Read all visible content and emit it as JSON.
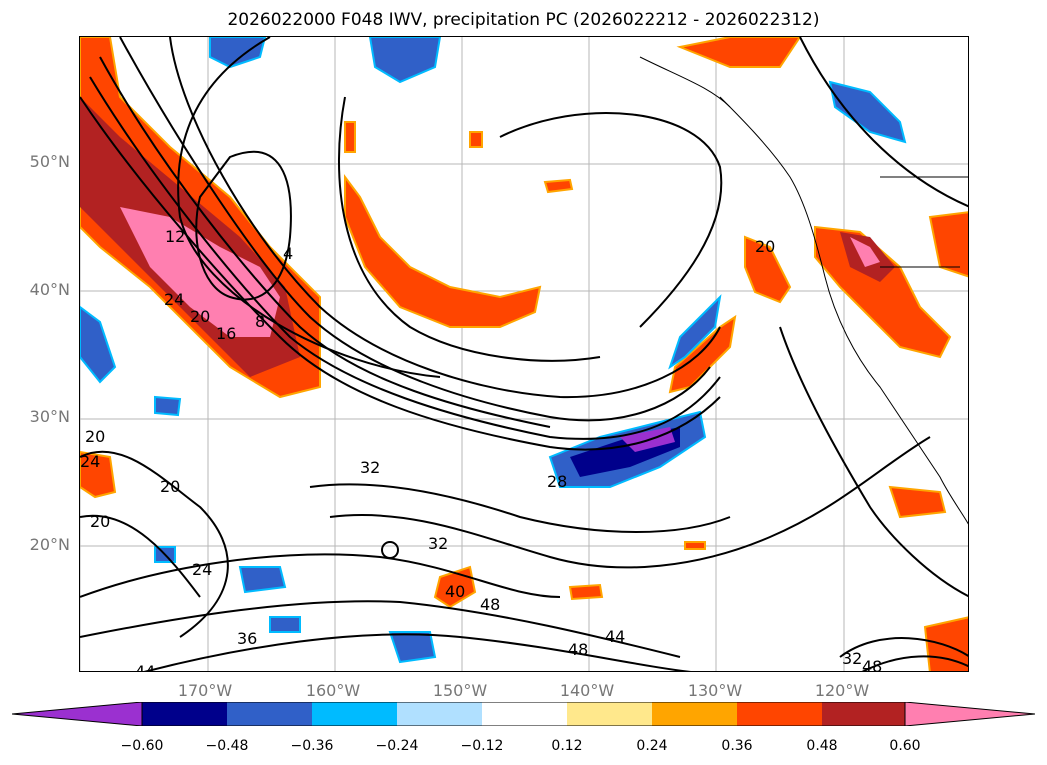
{
  "title": "2026022000 F048 IWV, precipitation PC (2026022212 - 2026022312)",
  "map": {
    "lat_labels": [
      "50°N",
      "40°N",
      "30°N",
      "20°N"
    ],
    "lon_labels": [
      "170°W",
      "160°W",
      "150°W",
      "140°W",
      "130°W",
      "120°W"
    ],
    "contour_labels": [
      "12",
      "4",
      "24",
      "20",
      "16",
      "8",
      "20",
      "32",
      "28",
      "20",
      "24",
      "20",
      "32",
      "24",
      "40",
      "48",
      "36",
      "44",
      "48",
      "44",
      "32",
      "48",
      "20"
    ]
  },
  "colorbar": {
    "ticks": [
      "−0.60",
      "−0.48",
      "−0.36",
      "−0.24",
      "−0.12",
      "0.12",
      "0.24",
      "0.36",
      "0.48",
      "0.60"
    ],
    "colors": {
      "under": "#9b30d0",
      "c1": "#00008b",
      "c2": "#3060c8",
      "c3": "#00bbff",
      "c4": "#b0e0ff",
      "c5": "#ffffff",
      "c6": "#ffe88c",
      "c7": "#ffa500",
      "c8": "#ff4500",
      "c9": "#b22222",
      "over": "#ff7fb0"
    }
  }
}
